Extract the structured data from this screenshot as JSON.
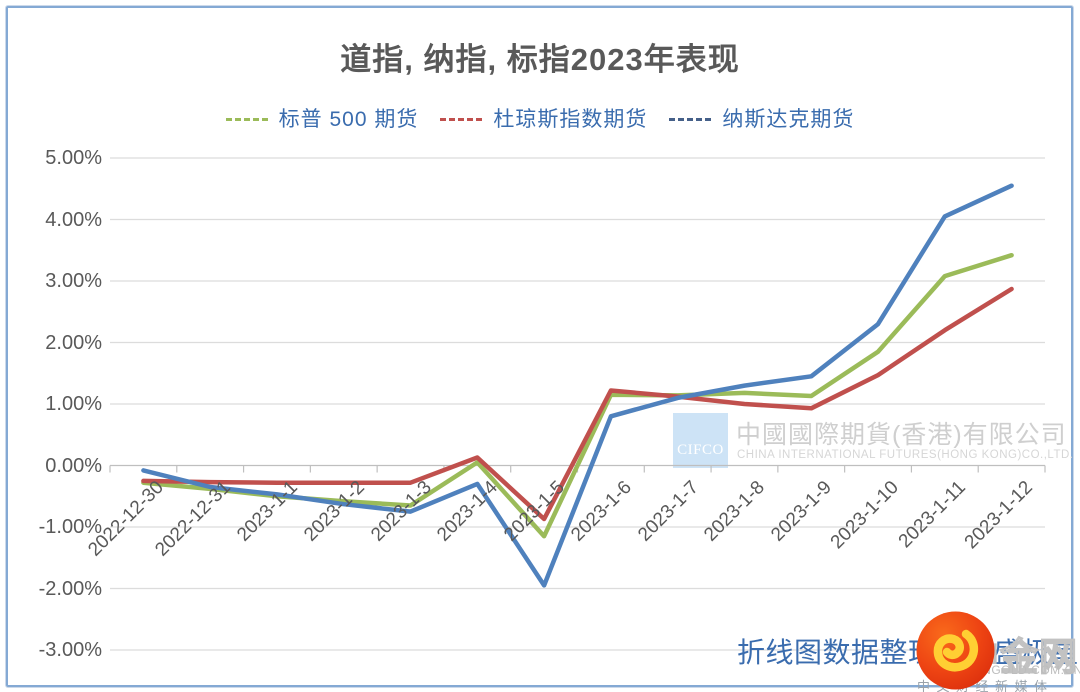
{
  "title": "道指, 纳指, 标指2023年表现",
  "legend": [
    {
      "label": "标普 500 期货",
      "dash_color": "#9BBB59"
    },
    {
      "label": "杜琼斯指数期货",
      "dash_color": "#C0504D"
    },
    {
      "label": "纳斯达克期货",
      "dash_color": "#456089"
    }
  ],
  "chart_data": {
    "type": "line",
    "title": "道指, 纳指, 标指2023年表现",
    "categories": [
      "2022-12-30",
      "2022-12-31",
      "2023-1-1",
      "2023-1-2",
      "2023-1-3",
      "2023-1-4",
      "2023-1-5",
      "2023-1-6",
      "2023-1-7",
      "2023-1-8",
      "2023-1-9",
      "2023-1-10",
      "2023-1-11",
      "2023-1-12"
    ],
    "series": [
      {
        "name": "标普 500 期货",
        "color": "#9BBB59",
        "values": [
          -0.28,
          -0.38,
          -0.5,
          -0.58,
          -0.65,
          0.05,
          -1.15,
          1.15,
          1.14,
          1.18,
          1.13,
          1.85,
          3.08,
          3.42
        ]
      },
      {
        "name": "杜琼斯指数期货",
        "color": "#C0504D",
        "values": [
          -0.25,
          -0.27,
          -0.28,
          -0.28,
          -0.28,
          0.13,
          -0.87,
          1.22,
          1.12,
          1.0,
          0.93,
          1.47,
          2.2,
          2.87
        ]
      },
      {
        "name": "纳斯达克期货",
        "color": "#4F81BD",
        "values": [
          -0.08,
          -0.35,
          -0.47,
          -0.63,
          -0.75,
          -0.3,
          -1.95,
          0.8,
          1.1,
          1.3,
          1.45,
          2.3,
          4.05,
          4.55
        ]
      }
    ],
    "ylabels": [
      "5.00%",
      "4.00%",
      "3.00%",
      "2.00%",
      "1.00%",
      "0.00%",
      "-1.00%",
      "-2.00%",
      "-3.00%"
    ],
    "ymax": 5,
    "ymin": -3,
    "ystep": 1,
    "unit": "%",
    "grid": true,
    "legend_position": "top"
  },
  "watermark": {
    "cifco_logo": "CIFCO",
    "company_cn": "中國國際期貨(香港)有限公司",
    "company_en": "CHINA INTERNATIONAL FUTURES(HONG KONG)CO.,LTD."
  },
  "source_note": "折线图数据整理自易盛极星",
  "footer_logo": {
    "wordmark": "中金网",
    "domain": "CNGOLD.COM.CN",
    "tagline": "中文财经新媒体"
  },
  "colors": {
    "line_green": "#9BBB59",
    "line_red": "#C0504D",
    "line_blue": "#4F81BD",
    "text_blue": "#3A6CAE",
    "axis_text": "#595959",
    "gridline": "#DCDCDC",
    "axis_line": "#BFBFBF",
    "border_blue": "#84A9D4",
    "logo_red": "#E63312",
    "logo_yellow": "#FFCC33",
    "watermark_gray": "#CFCFCF",
    "cifco_bg": "#CDE3F6"
  }
}
